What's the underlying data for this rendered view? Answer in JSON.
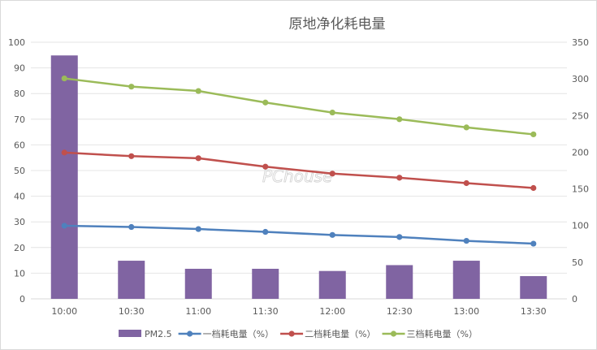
{
  "chart_data": {
    "type": "bar",
    "title": "原地净化耗电量",
    "categories": [
      "10:00",
      "10:30",
      "11:00",
      "11:30",
      "12:00",
      "12:30",
      "13:00",
      "13:30"
    ],
    "y_left": {
      "min": 0,
      "max": 100,
      "step": 10,
      "ticks": [
        "0",
        "10",
        "20",
        "30",
        "40",
        "50",
        "60",
        "70",
        "80",
        "90",
        "100"
      ]
    },
    "y_right": {
      "min": 0,
      "max": 350,
      "step": 50,
      "ticks": [
        "0",
        "50",
        "100",
        "150",
        "200",
        "250",
        "300",
        "350"
      ]
    },
    "grid": true,
    "legend_position": "bottom",
    "series": [
      {
        "name": "PM2.5",
        "type": "bar",
        "axis": "right",
        "color": "#8064a2",
        "values": [
          332,
          52,
          41,
          41,
          38,
          46,
          52,
          31
        ]
      },
      {
        "name": "一档耗电量（%）",
        "type": "line",
        "axis": "left",
        "color": "#4f81bd",
        "values": [
          28.5,
          28,
          27.2,
          26.1,
          24.9,
          24.1,
          22.6,
          21.5
        ]
      },
      {
        "name": "二档耗电量（%）",
        "type": "line",
        "axis": "left",
        "color": "#c0504d",
        "values": [
          57,
          55.6,
          54.8,
          51.5,
          48.8,
          47.2,
          45.1,
          43.2
        ]
      },
      {
        "name": "三档耗电量（%）",
        "type": "line",
        "axis": "left",
        "color": "#9bbb59",
        "values": [
          85.9,
          82.7,
          81,
          76.5,
          72.6,
          70,
          66.8,
          64.1
        ]
      }
    ]
  },
  "watermark": "PChouse"
}
